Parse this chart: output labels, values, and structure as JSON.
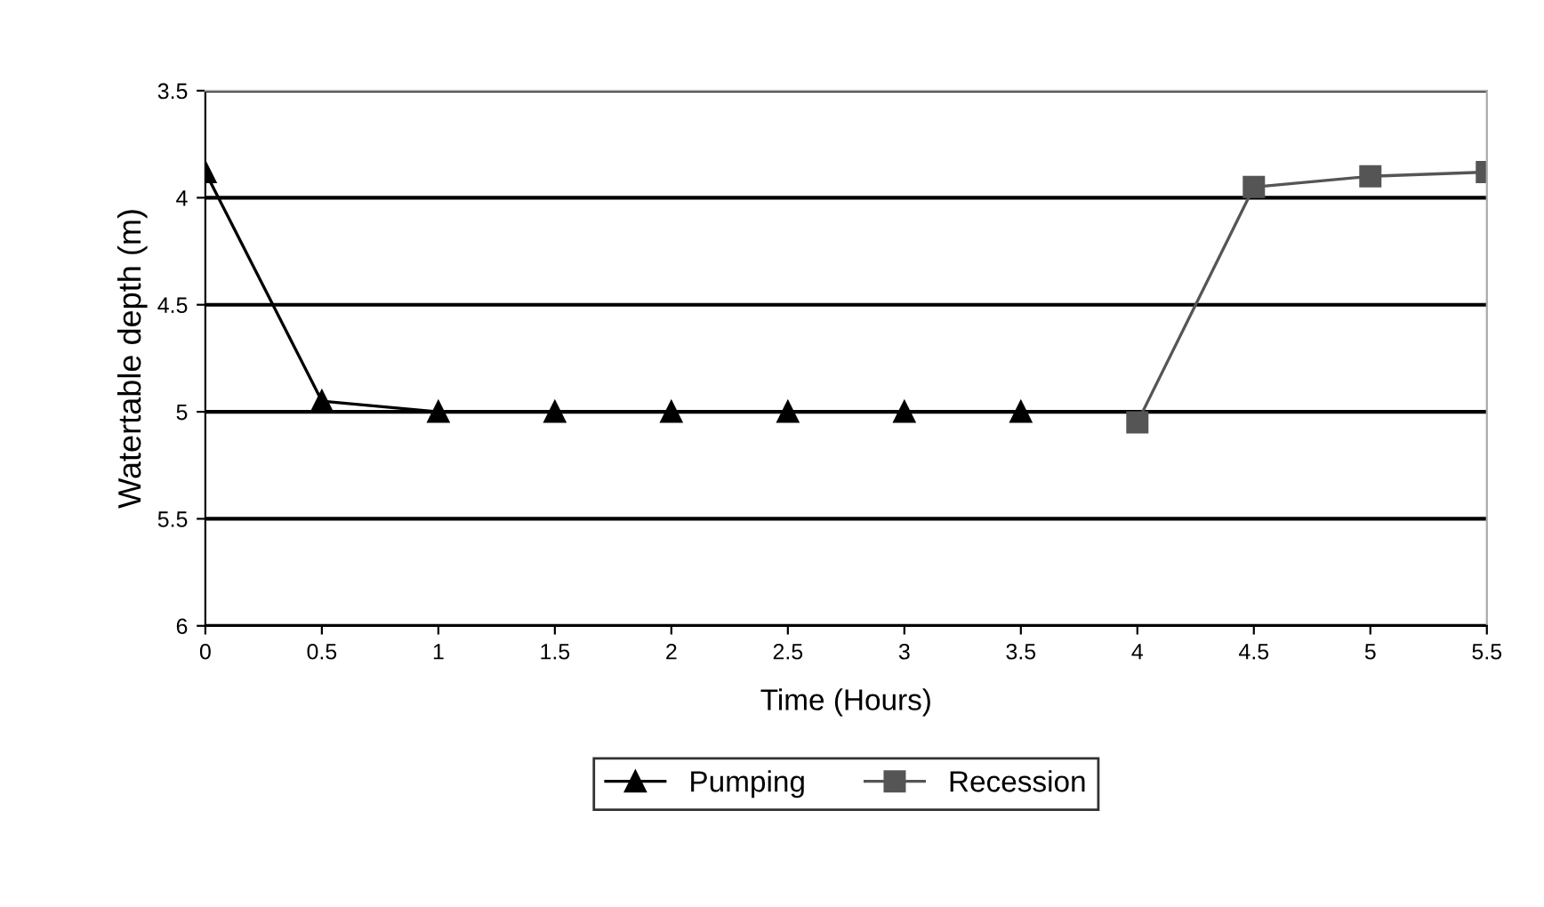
{
  "chart_data": {
    "type": "line",
    "xlabel": "Time (Hours)",
    "ylabel": "Watertable depth (m)",
    "xlim": [
      0,
      5.5
    ],
    "xticks": [
      0,
      0.5,
      1,
      1.5,
      2,
      2.5,
      3,
      3.5,
      4,
      4.5,
      5,
      5.5
    ],
    "ylim": [
      6,
      3.5
    ],
    "yticks": [
      3.5,
      4,
      4.5,
      5,
      5.5,
      6
    ],
    "grid": "y",
    "legend": "bottom",
    "series": [
      {
        "name": "Pumping",
        "color": "#000000",
        "marker": "triangle",
        "x": [
          0,
          0.5,
          1,
          1.5,
          2,
          2.5,
          3,
          3.5
        ],
        "values": [
          3.88,
          4.95,
          5.0,
          5.0,
          5.0,
          5.0,
          5.0,
          5.0
        ]
      },
      {
        "name": "Recession",
        "color": "#555555",
        "marker": "square",
        "x": [
          4,
          4.5,
          5,
          5.5
        ],
        "values": [
          5.05,
          3.95,
          3.9,
          3.88
        ]
      }
    ]
  }
}
